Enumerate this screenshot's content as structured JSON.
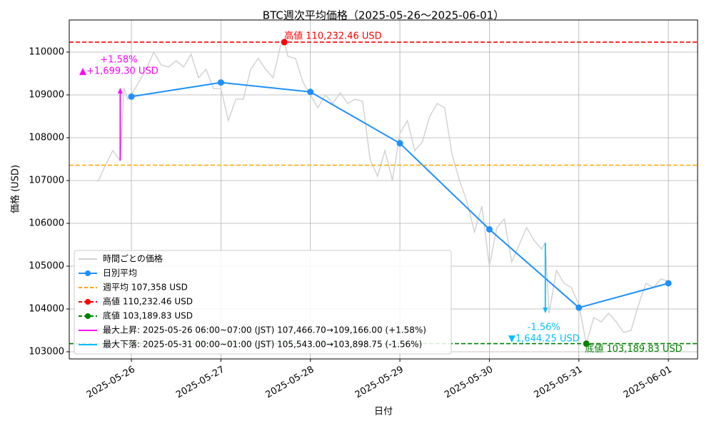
{
  "chart_data": {
    "type": "line",
    "title": "BTC週次平均価格（2025-05-26～2025-06-01）",
    "xlabel": "日付",
    "ylabel": "価格 (USD)",
    "xlim": [
      "2025-05-25 07:20",
      "2025-06-01 07:50"
    ],
    "xticks": [
      "2025-05-26",
      "2025-05-27",
      "2025-05-28",
      "2025-05-29",
      "2025-05-30",
      "2025-05-31",
      "2025-06-01"
    ],
    "ylim": [
      102833,
      110750
    ],
    "yticks": [
      103000,
      104000,
      105000,
      106000,
      107000,
      108000,
      109000,
      110000
    ],
    "grid": true,
    "legend": "lower left",
    "series": [
      {
        "name": "時間ごとの価格",
        "color": "#d3d3d3",
        "marker": false,
        "x": [
          "2025-05-25 15:00",
          "2025-05-25 17:00",
          "2025-05-25 19:00",
          "2025-05-25 21:00",
          "2025-05-25 22:00",
          "2025-05-25 23:00",
          "2025-05-26 00:00",
          "2025-05-26 02:00",
          "2025-05-26 04:00",
          "2025-05-26 06:00",
          "2025-05-26 08:00",
          "2025-05-26 10:00",
          "2025-05-26 12:00",
          "2025-05-26 14:00",
          "2025-05-26 16:00",
          "2025-05-26 18:00",
          "2025-05-26 20:00",
          "2025-05-26 22:00",
          "2025-05-27 00:00",
          "2025-05-27 02:00",
          "2025-05-27 04:00",
          "2025-05-27 06:00",
          "2025-05-27 08:00",
          "2025-05-27 10:00",
          "2025-05-27 12:00",
          "2025-05-27 14:00",
          "2025-05-27 16:00",
          "2025-05-27 17:00",
          "2025-05-27 18:00",
          "2025-05-27 20:00",
          "2025-05-27 22:00",
          "2025-05-28 00:00",
          "2025-05-28 02:00",
          "2025-05-28 04:00",
          "2025-05-28 06:00",
          "2025-05-28 08:00",
          "2025-05-28 10:00",
          "2025-05-28 12:00",
          "2025-05-28 14:00",
          "2025-05-28 16:00",
          "2025-05-28 18:00",
          "2025-05-28 20:00",
          "2025-05-28 22:00",
          "2025-05-29 00:00",
          "2025-05-29 02:00",
          "2025-05-29 04:00",
          "2025-05-29 06:00",
          "2025-05-29 08:00",
          "2025-05-29 10:00",
          "2025-05-29 12:00",
          "2025-05-29 14:00",
          "2025-05-29 16:00",
          "2025-05-29 18:00",
          "2025-05-29 20:00",
          "2025-05-29 22:00",
          "2025-05-30 00:00",
          "2025-05-30 02:00",
          "2025-05-30 04:00",
          "2025-05-30 06:00",
          "2025-05-30 08:00",
          "2025-05-30 10:00",
          "2025-05-30 12:00",
          "2025-05-30 14:00",
          "2025-05-30 15:00",
          "2025-05-30 16:00",
          "2025-05-30 18:00",
          "2025-05-30 20:00",
          "2025-05-30 22:00",
          "2025-05-31 00:00",
          "2025-05-31 02:00",
          "2025-05-31 04:00",
          "2025-05-31 06:00",
          "2025-05-31 08:00",
          "2025-05-31 10:00",
          "2025-05-31 12:00",
          "2025-05-31 14:00",
          "2025-05-31 16:00",
          "2025-05-31 18:00",
          "2025-05-31 20:00",
          "2025-05-31 22:00",
          "2025-06-01 00:00"
        ],
        "values": [
          106970,
          107350,
          107700,
          107466.7,
          109166,
          108900,
          109000,
          109300,
          109600,
          110000,
          109700,
          109650,
          109800,
          109650,
          109950,
          109400,
          109600,
          109150,
          109150,
          108400,
          108900,
          108900,
          109600,
          109850,
          109600,
          109400,
          110150,
          110232.46,
          109900,
          109850,
          109300,
          109000,
          108700,
          109000,
          108800,
          109050,
          108800,
          108900,
          108850,
          107500,
          107100,
          107700,
          107000,
          108100,
          108400,
          107700,
          107900,
          108500,
          108800,
          108700,
          107600,
          107000,
          106500,
          105800,
          106400,
          105000,
          105900,
          106100,
          105100,
          105500,
          105900,
          105600,
          105400,
          105543,
          103898.75,
          104900,
          104600,
          104500,
          104100,
          103189.83,
          103800,
          103700,
          103900,
          103700,
          103450,
          103500,
          104100,
          104600,
          104500,
          104700,
          104650
        ]
      },
      {
        "name": "日別平均",
        "color": "#1e90ff",
        "marker": true,
        "x": [
          "2025-05-26 00:00",
          "2025-05-27 00:00",
          "2025-05-28 00:00",
          "2025-05-29 00:00",
          "2025-05-30 00:00",
          "2025-05-31 00:00",
          "2025-06-01 00:00"
        ],
        "values": [
          108960,
          109290,
          109070,
          107870,
          105860,
          104030,
          104600
        ]
      }
    ],
    "hlines": [
      {
        "name": "週平均 107,358 USD",
        "value": 107358,
        "color": "#ffa500"
      },
      {
        "name": "高値 110,232.46 USD",
        "value": 110232.46,
        "color": "#ff0000",
        "x": "2025-05-27 17:00",
        "label": "高値 110,232.46 USD"
      },
      {
        "name": "底値 103,189.83 USD",
        "value": 103189.83,
        "color": "#008000",
        "x": "2025-05-31 02:00",
        "label": "底値 103,189.83 USD"
      }
    ],
    "arrows": [
      {
        "name": "最大上昇: 2025-05-26 06:00~07:00 (JST)  107,466.70→109,166.00 (+1.58%)",
        "color": "#ff00ff",
        "x": "2025-05-25 21:00",
        "from": 107466.7,
        "to": 109166,
        "label": [
          "+1.58%",
          "▲+1,699.30 USD"
        ]
      },
      {
        "name": "最大下落: 2025-05-31 00:00~01:00 (JST)  105,543.00→103,898.75 (-1.56%)",
        "color": "#00bfff",
        "x": "2025-05-30 15:00",
        "from": 105543,
        "to": 103898.75,
        "label": [
          "-1.56%",
          "▼1,644.25 USD"
        ]
      }
    ]
  }
}
